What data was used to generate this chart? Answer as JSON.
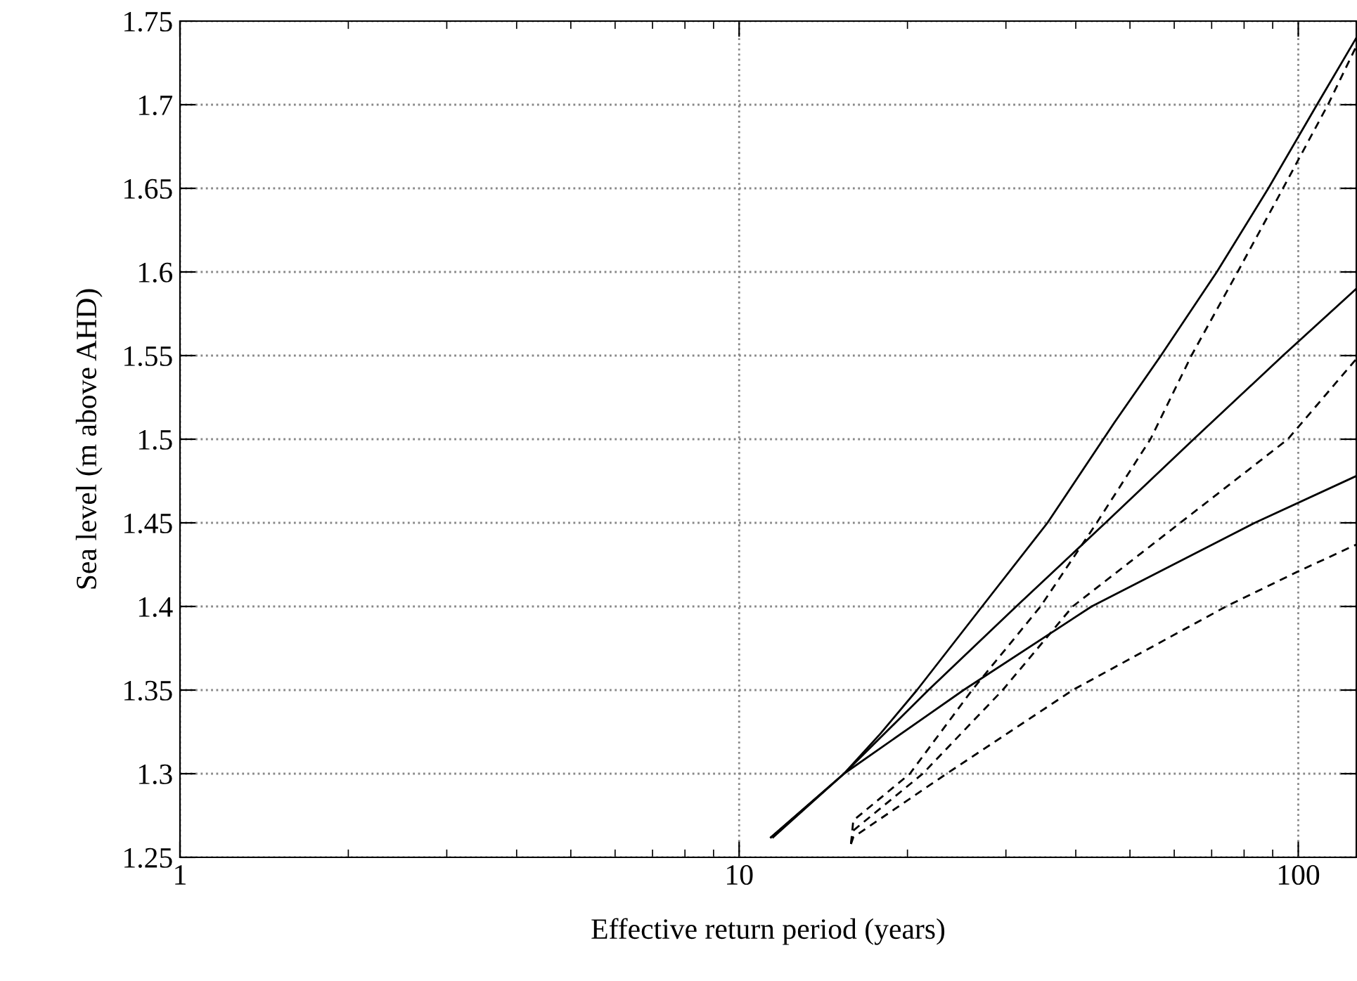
{
  "chart_data": {
    "type": "line",
    "xlabel": "Effective return period (years)",
    "ylabel": "Sea level (m above AHD)",
    "log": "x",
    "xlim": [
      1,
      127
    ],
    "xticks": [
      1,
      10,
      100
    ],
    "ylim": [
      1.25,
      1.75
    ],
    "yticks": [
      1.25,
      1.3,
      1.35,
      1.4,
      1.45,
      1.5,
      1.55,
      1.6,
      1.65,
      1.7,
      1.75
    ],
    "grid": true,
    "marker": "none",
    "series": [
      {
        "color": "#000000",
        "line_style": "solid",
        "x": [
          11.4,
          15.4,
          17.9,
          20.8,
          27.2,
          35.6,
          46.9,
          56.8,
          71.5,
          88.4,
          108,
          127
        ],
        "values": [
          1.262,
          1.3,
          1.324,
          1.35,
          1.4,
          1.45,
          1.51,
          1.55,
          1.6,
          1.65,
          1.7,
          1.74
        ]
      },
      {
        "color": "#000000",
        "line_style": "solid",
        "x": [
          11.5,
          15.4,
          21.8,
          31.3,
          45.2,
          65.0,
          93.9,
          127
        ],
        "values": [
          1.262,
          1.3,
          1.35,
          1.4,
          1.45,
          1.5,
          1.55,
          1.59
        ]
      },
      {
        "color": "#000000",
        "line_style": "solid",
        "x": [
          11.4,
          15.4,
          25.2,
          42.7,
          83.6,
          127
        ],
        "values": [
          1.262,
          1.3,
          1.35,
          1.4,
          1.45,
          1.478
        ]
      },
      {
        "color": "#000000",
        "line_style": "dashed",
        "x": [
          15.85,
          16.0,
          20.2,
          26.1,
          34.6,
          43.6,
          54.4,
          64.4,
          77.9,
          93.9,
          113,
          127
        ],
        "values": [
          1.258,
          1.272,
          1.3,
          1.35,
          1.4,
          1.45,
          1.5,
          1.55,
          1.6,
          1.65,
          1.7,
          1.735
        ]
      },
      {
        "color": "#000000",
        "line_style": "dashed",
        "x": [
          15.85,
          16.0,
          21.3,
          29.6,
          39.5,
          61.5,
          95.8,
          127
        ],
        "values": [
          1.258,
          1.266,
          1.3,
          1.35,
          1.4,
          1.45,
          1.5,
          1.548
        ]
      },
      {
        "color": "#000000",
        "line_style": "dashed",
        "x": [
          15.85,
          16.0,
          23.5,
          39.5,
          74.3,
          100,
          127
        ],
        "values": [
          1.258,
          1.262,
          1.3,
          1.35,
          1.4,
          1.421,
          1.437
        ]
      }
    ]
  }
}
